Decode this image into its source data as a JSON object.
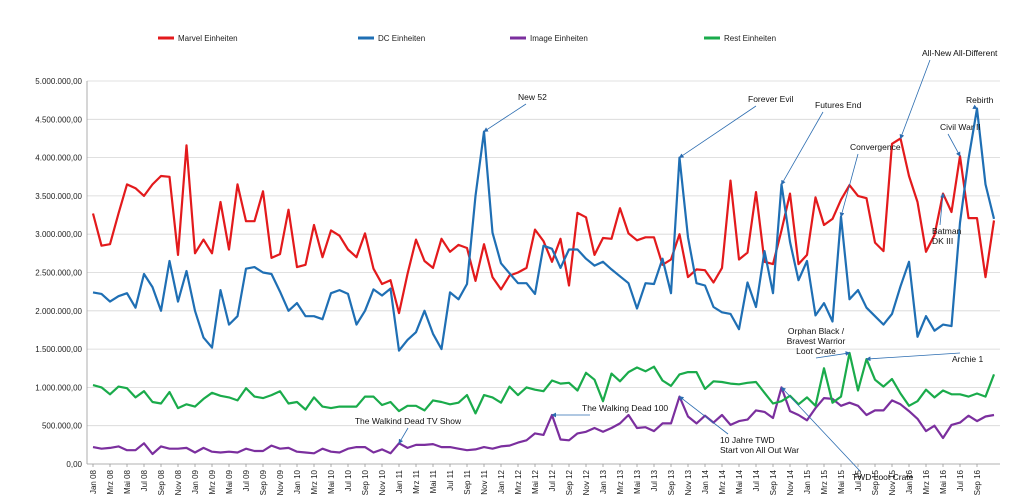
{
  "chart_data": {
    "type": "line",
    "title": "",
    "xlabel": "",
    "ylabel": "",
    "ylim": [
      0,
      5000000
    ],
    "y_ticks": [
      "0,00",
      "500.000,00",
      "1.000.000,00",
      "1.500.000,00",
      "2.000.000,00",
      "2.500.000,00",
      "3.000.000,00",
      "3.500.000,00",
      "4.000.000,00",
      "4.500.000,00",
      "5.000.000,00"
    ],
    "x_tick_labels": [
      "Jan 08",
      "Mrz 08",
      "Mai 08",
      "Jul 08",
      "Sep 08",
      "Nov 08",
      "Jan 09",
      "Mrz 09",
      "Mai 09",
      "Jul 09",
      "Sep 09",
      "Nov 09",
      "Jan 10",
      "Mrz 10",
      "Mai 10",
      "Jul 10",
      "Sep 10",
      "Nov 10",
      "Jan 11",
      "Mrz 11",
      "Mai 11",
      "Jul 11",
      "Sep 11",
      "Nov 11",
      "Jan 12",
      "Mrz 12",
      "Mai 12",
      "Jul 12",
      "Sep 12",
      "Nov 12",
      "Jan 13",
      "Mrz 13",
      "Mai 13",
      "Jul 13",
      "Sep 13",
      "Nov 13",
      "Jan 14",
      "Mrz 14",
      "Mai 14",
      "Jul 14",
      "Sep 14",
      "Nov 14",
      "Jan 15",
      "Mrz 15",
      "Mai 15",
      "Jul 15",
      "Sep 15",
      "Nov 15",
      "Jan 16",
      "Mrz 16",
      "Mai 16",
      "Jul 16",
      "Sep 16"
    ],
    "grid": true,
    "legend_position": "top",
    "series": [
      {
        "name": "Marvel Einheiten",
        "color": "#e31a1c",
        "values": [
          3270000,
          2850000,
          2870000,
          3270000,
          3650000,
          3600000,
          3500000,
          3650000,
          3760000,
          3750000,
          2730000,
          4160000,
          2750000,
          2930000,
          2750000,
          3420000,
          2800000,
          3650000,
          3170000,
          3170000,
          3560000,
          2690000,
          2740000,
          3320000,
          2570000,
          2600000,
          3120000,
          2700000,
          3050000,
          2980000,
          2800000,
          2700000,
          3010000,
          2550000,
          2350000,
          2400000,
          1970000,
          2480000,
          2930000,
          2650000,
          2560000,
          2940000,
          2770000,
          2860000,
          2820000,
          2390000,
          2870000,
          2440000,
          2280000,
          2460000,
          2500000,
          2560000,
          3060000,
          2910000,
          2640000,
          2940000,
          2330000,
          3280000,
          3220000,
          2730000,
          2950000,
          2940000,
          3340000,
          3010000,
          2920000,
          2960000,
          2960000,
          2600000,
          2670000,
          3000000,
          2440000,
          2540000,
          2530000,
          2370000,
          2560000,
          3700000,
          2670000,
          2760000,
          3550000,
          2640000,
          2610000,
          3050000,
          3530000,
          2610000,
          2730000,
          3480000,
          3120000,
          3200000,
          3450000,
          3640000,
          3500000,
          3470000,
          2890000,
          2780000,
          4180000,
          4250000,
          3760000,
          3420000,
          2770000,
          2990000,
          3530000,
          3290000,
          4020000,
          3210000,
          3210000,
          2440000,
          3180000
        ]
      },
      {
        "name": "DC Einheiten",
        "color": "#1f6fb4",
        "values": [
          2240000,
          2220000,
          2120000,
          2190000,
          2230000,
          2040000,
          2480000,
          2310000,
          2000000,
          2650000,
          2120000,
          2520000,
          2000000,
          1650000,
          1520000,
          2270000,
          1820000,
          1930000,
          2550000,
          2570000,
          2500000,
          2480000,
          2250000,
          2000000,
          2100000,
          1930000,
          1930000,
          1890000,
          2230000,
          2270000,
          2220000,
          1820000,
          2000000,
          2280000,
          2200000,
          2290000,
          1480000,
          1620000,
          1720000,
          2000000,
          1700000,
          1500000,
          2240000,
          2150000,
          2350000,
          3500000,
          4340000,
          3020000,
          2620000,
          2490000,
          2360000,
          2360000,
          2220000,
          2850000,
          2810000,
          2560000,
          2800000,
          2800000,
          2680000,
          2590000,
          2640000,
          2540000,
          2450000,
          2360000,
          2030000,
          2360000,
          2350000,
          2680000,
          2230000,
          4000000,
          2960000,
          2360000,
          2330000,
          2050000,
          1980000,
          1960000,
          1760000,
          2370000,
          2050000,
          2780000,
          2230000,
          3650000,
          2900000,
          2400000,
          2650000,
          1940000,
          2100000,
          1860000,
          3230000,
          2150000,
          2270000,
          2040000,
          1930000,
          1820000,
          1960000,
          2320000,
          2640000,
          1660000,
          1930000,
          1740000,
          1820000,
          1800000,
          3150000,
          3980000,
          4640000,
          3650000,
          3200000
        ]
      },
      {
        "name": "Image Einheiten",
        "color": "#7b2f9e",
        "values": [
          220000,
          200000,
          210000,
          230000,
          180000,
          180000,
          270000,
          130000,
          230000,
          200000,
          200000,
          210000,
          150000,
          210000,
          160000,
          150000,
          160000,
          150000,
          200000,
          170000,
          170000,
          240000,
          200000,
          210000,
          160000,
          150000,
          140000,
          200000,
          160000,
          150000,
          200000,
          220000,
          220000,
          150000,
          190000,
          140000,
          270000,
          210000,
          250000,
          250000,
          260000,
          220000,
          220000,
          200000,
          180000,
          190000,
          220000,
          200000,
          230000,
          240000,
          280000,
          310000,
          400000,
          380000,
          640000,
          320000,
          310000,
          400000,
          420000,
          470000,
          420000,
          470000,
          530000,
          640000,
          470000,
          480000,
          430000,
          530000,
          530000,
          880000,
          620000,
          530000,
          630000,
          540000,
          640000,
          510000,
          560000,
          580000,
          700000,
          680000,
          600000,
          1000000,
          690000,
          640000,
          570000,
          730000,
          860000,
          850000,
          760000,
          800000,
          760000,
          640000,
          700000,
          700000,
          830000,
          780000,
          690000,
          590000,
          430000,
          500000,
          340000,
          510000,
          540000,
          630000,
          560000,
          620000,
          640000
        ]
      },
      {
        "name": "Rest Einheiten",
        "color": "#1aab4b",
        "values": [
          1030000,
          1000000,
          910000,
          1010000,
          990000,
          870000,
          950000,
          810000,
          790000,
          940000,
          730000,
          780000,
          750000,
          850000,
          930000,
          890000,
          870000,
          830000,
          990000,
          880000,
          860000,
          900000,
          950000,
          790000,
          810000,
          710000,
          870000,
          750000,
          730000,
          750000,
          750000,
          750000,
          880000,
          880000,
          770000,
          810000,
          690000,
          760000,
          760000,
          700000,
          830000,
          810000,
          780000,
          800000,
          900000,
          660000,
          900000,
          870000,
          800000,
          1010000,
          900000,
          1000000,
          970000,
          950000,
          1090000,
          1050000,
          1060000,
          960000,
          1190000,
          1100000,
          820000,
          1180000,
          1080000,
          1200000,
          1260000,
          1210000,
          1270000,
          1090000,
          1020000,
          1170000,
          1200000,
          1200000,
          980000,
          1080000,
          1070000,
          1050000,
          1040000,
          1060000,
          1070000,
          930000,
          790000,
          820000,
          890000,
          780000,
          870000,
          760000,
          1250000,
          800000,
          880000,
          1450000,
          960000,
          1370000,
          1100000,
          1010000,
          1110000,
          920000,
          760000,
          820000,
          970000,
          870000,
          960000,
          910000,
          910000,
          880000,
          920000,
          880000,
          1170000
        ]
      }
    ],
    "annotations": [
      {
        "text": "New 52",
        "series": 1,
        "index": 46,
        "anchor": "start"
      },
      {
        "text": "Forever Evil",
        "series": 1,
        "index": 69,
        "anchor": "start"
      },
      {
        "text": "Futures End",
        "series": 1,
        "index": 81,
        "anchor": "start"
      },
      {
        "text": "Convergence",
        "series": 1,
        "index": 88,
        "anchor": "start"
      },
      {
        "text": "All-New All-Different",
        "series": 0,
        "index": 95,
        "anchor": "start"
      },
      {
        "text": "Rebirth",
        "series": 1,
        "index": 104,
        "anchor": "start"
      },
      {
        "text": "Civil War II",
        "series": 0,
        "index": 102,
        "anchor": "start"
      },
      {
        "text": "Batman",
        "line2": "DK III",
        "series": 0,
        "index": 100,
        "anchor": "start"
      },
      {
        "text": "Orphan Black /",
        "line2": "Bravest Warrior",
        "line3": "Loot Crate",
        "series": 3,
        "index": 89,
        "anchor": "middle"
      },
      {
        "text": "Archie 1",
        "series": 3,
        "index": 91,
        "anchor": "start"
      },
      {
        "text": "The Walking Dead 100",
        "series": 2,
        "index": 54,
        "anchor": "start"
      },
      {
        "text": "The Walkind Dead TV Show",
        "series": 2,
        "index": 36,
        "anchor": "middle"
      },
      {
        "text": "10 Jahre TWD",
        "line2": "Start von  All Out War",
        "series": 2,
        "index": 69,
        "anchor": "start"
      },
      {
        "text": "TWD Loot Crate",
        "series": 2,
        "index": 81,
        "anchor": "start"
      }
    ]
  }
}
